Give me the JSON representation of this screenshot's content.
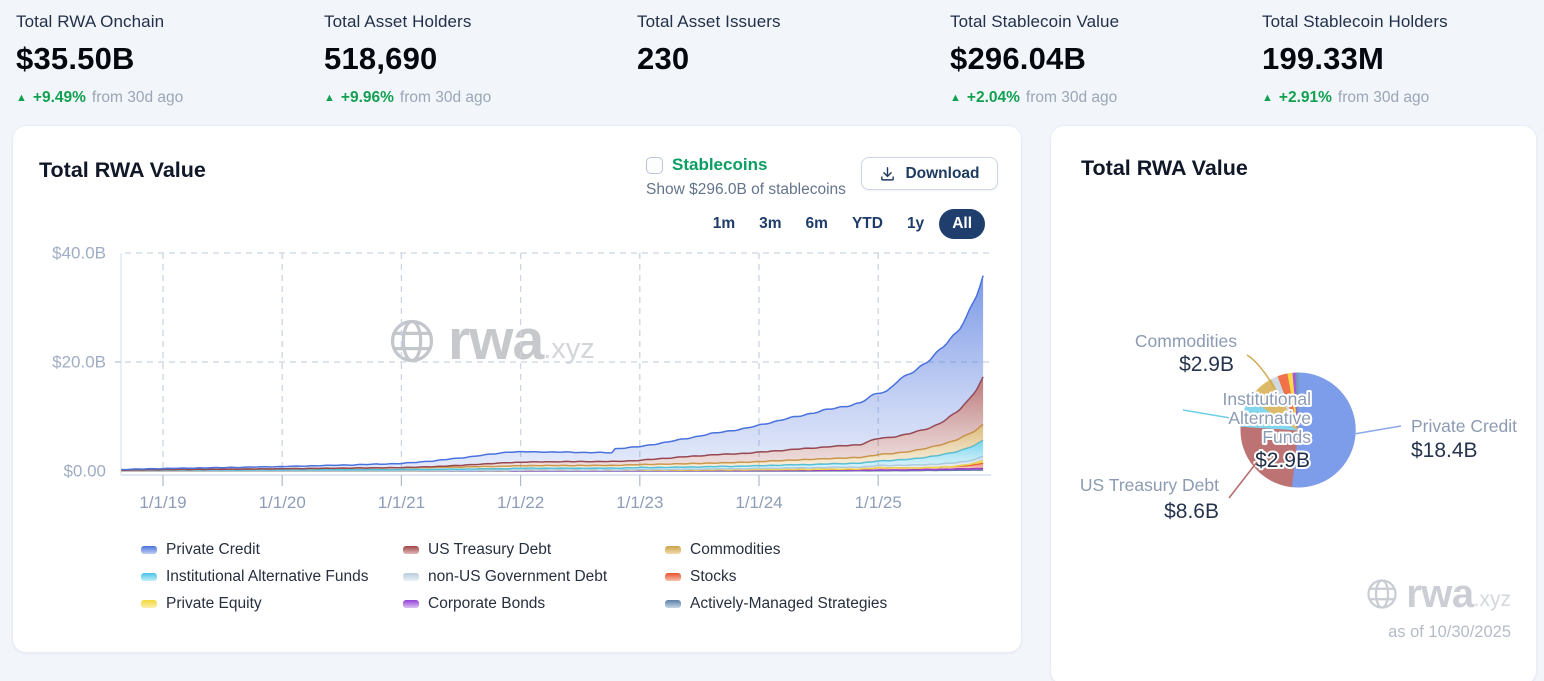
{
  "stats": [
    {
      "label": "Total RWA Onchain",
      "value": "$35.50B",
      "delta": "+9.49%",
      "delta_suffix": "from 30d ago"
    },
    {
      "label": "Total Asset Holders",
      "value": "518,690",
      "delta": "+9.96%",
      "delta_suffix": "from 30d ago"
    },
    {
      "label": "Total Asset Issuers",
      "value": "230",
      "delta": "",
      "delta_suffix": ""
    },
    {
      "label": "Total Stablecoin Value",
      "value": "$296.04B",
      "delta": "+2.04%",
      "delta_suffix": "from 30d ago"
    },
    {
      "label": "Total Stablecoin Holders",
      "value": "199.33M",
      "delta": "+2.91%",
      "delta_suffix": "from 30d ago"
    }
  ],
  "left_card": {
    "title": "Total RWA Value",
    "stablecoins_checkbox_label": "Stablecoins",
    "stablecoins_checkbox_checked": false,
    "stablecoins_subtext": "Show $296.0B of stablecoins",
    "download_label": "Download",
    "time_ranges": [
      "1m",
      "3m",
      "6m",
      "YTD",
      "1y",
      "All"
    ],
    "active_time_range": "All"
  },
  "right_card": {
    "title": "Total RWA Value",
    "as_of": "as of 10/30/2025"
  },
  "watermark": {
    "brand": "rwa",
    "tld": ".xyz"
  },
  "colors": {
    "accent_navy": "#1f3e6d",
    "positive_green": "#12a150",
    "stablecoin_green": "#0b9e63",
    "page_bg": "#f2f6fb",
    "grid": "#ccd5e0",
    "axis_label": "#9aa8c0"
  },
  "chart_data": [
    {
      "type": "area",
      "stacked": true,
      "title": "Total RWA Value",
      "y_ticks": [
        {
          "v": 0,
          "label": "$0.00"
        },
        {
          "v": 20,
          "label": "$20.0B"
        },
        {
          "v": 40,
          "label": "$40.0B"
        }
      ],
      "ylim_b": [
        0,
        40
      ],
      "x_ticks": [
        {
          "t": 2019,
          "label": "1/1/19"
        },
        {
          "t": 2020,
          "label": "1/1/20"
        },
        {
          "t": 2021,
          "label": "1/1/21"
        },
        {
          "t": 2022,
          "label": "1/1/22"
        },
        {
          "t": 2023,
          "label": "1/1/23"
        },
        {
          "t": 2024,
          "label": "1/1/24"
        },
        {
          "t": 2025,
          "label": "1/1/25"
        }
      ],
      "x_years": [
        2018.65,
        2019.0,
        2019.5,
        2020.0,
        2020.5,
        2021.0,
        2021.3,
        2021.6,
        2021.9,
        2022.1,
        2022.35,
        2022.6,
        2022.78,
        2022.79,
        2023.0,
        2023.3,
        2023.6,
        2023.9,
        2024.1,
        2024.35,
        2024.6,
        2024.85,
        2024.95,
        2025.0,
        2025.08,
        2025.17,
        2025.25,
        2025.33,
        2025.42,
        2025.5,
        2025.58,
        2025.67,
        2025.75,
        2025.83,
        2025.88
      ],
      "series": [
        {
          "name": "Actively-Managed Strategies",
          "color": "#5b7fa6",
          "light": "#c3d6e6",
          "values": [
            0,
            0,
            0,
            0,
            0,
            0,
            0,
            0,
            0,
            0,
            0,
            0,
            0,
            0,
            0,
            0,
            0,
            0,
            0,
            0,
            0.02,
            0.03,
            0.04,
            0.05,
            0.05,
            0.06,
            0.07,
            0.08,
            0.09,
            0.1,
            0.12,
            0.14,
            0.16,
            0.18,
            0.2
          ]
        },
        {
          "name": "Corporate Bonds",
          "color": "#9340d9",
          "light": "#ddc2f2",
          "values": [
            0,
            0,
            0,
            0,
            0,
            0,
            0,
            0,
            0.03,
            0.05,
            0.06,
            0.06,
            0.06,
            0.06,
            0.07,
            0.07,
            0.08,
            0.08,
            0.09,
            0.1,
            0.1,
            0.11,
            0.12,
            0.12,
            0.13,
            0.14,
            0.15,
            0.16,
            0.18,
            0.2,
            0.22,
            0.24,
            0.26,
            0.28,
            0.3
          ]
        },
        {
          "name": "Stocks",
          "color": "#e8532f",
          "light": "#f8c0ab",
          "values": [
            0,
            0,
            0,
            0,
            0,
            0,
            0.02,
            0.05,
            0.08,
            0.12,
            0.1,
            0.1,
            0.1,
            0.1,
            0.1,
            0.1,
            0.12,
            0.13,
            0.15,
            0.17,
            0.2,
            0.22,
            0.35,
            0.45,
            0.4,
            0.38,
            0.35,
            0.35,
            0.38,
            0.4,
            0.45,
            0.5,
            0.6,
            0.75,
            1.0
          ]
        },
        {
          "name": "Private Equity",
          "color": "#f2d73a",
          "light": "#fbf0ae",
          "values": [
            0,
            0,
            0,
            0,
            0,
            0,
            0,
            0,
            0,
            0,
            0,
            0,
            0,
            0,
            0,
            0,
            0,
            0,
            0,
            0,
            0,
            0,
            0,
            0,
            0,
            0,
            0,
            0,
            0,
            0,
            0,
            0.05,
            0.15,
            0.35,
            0.5
          ]
        },
        {
          "name": "non-US Government Debt",
          "color": "#b9cbdd",
          "light": "#e9f1f7",
          "values": [
            0,
            0,
            0,
            0,
            0,
            0,
            0,
            0,
            0,
            0,
            0,
            0,
            0,
            0,
            0.08,
            0.12,
            0.17,
            0.22,
            0.26,
            0.3,
            0.33,
            0.36,
            0.38,
            0.4,
            0.42,
            0.45,
            0.47,
            0.5,
            0.52,
            0.55,
            0.58,
            0.6,
            0.63,
            0.67,
            0.7
          ]
        },
        {
          "name": "Institutional Alternative Funds",
          "color": "#47c3e6",
          "light": "#c4eff9",
          "values": [
            0.15,
            0.17,
            0.19,
            0.21,
            0.24,
            0.27,
            0.29,
            0.31,
            0.33,
            0.34,
            0.34,
            0.35,
            0.35,
            0.35,
            0.37,
            0.39,
            0.42,
            0.46,
            0.52,
            0.58,
            0.65,
            0.72,
            0.8,
            0.85,
            0.9,
            1.0,
            1.1,
            1.25,
            1.4,
            1.6,
            1.8,
            2.1,
            2.4,
            2.7,
            2.9
          ]
        },
        {
          "name": "Commodities",
          "color": "#cfa14a",
          "light": "#eedcae",
          "values": [
            0.02,
            0.08,
            0.13,
            0.2,
            0.28,
            0.33,
            0.36,
            0.4,
            0.45,
            0.47,
            0.5,
            0.5,
            0.5,
            0.5,
            0.55,
            0.6,
            0.65,
            0.72,
            0.8,
            0.9,
            0.97,
            1.05,
            1.1,
            1.15,
            1.2,
            1.3,
            1.4,
            1.5,
            1.65,
            1.8,
            2.0,
            2.2,
            2.4,
            2.7,
            2.9
          ]
        },
        {
          "name": "US Treasury Debt",
          "color": "#a04444",
          "light": "#e0b8b8",
          "values": [
            0,
            0,
            0,
            0,
            0,
            0.02,
            0.15,
            0.4,
            0.65,
            0.68,
            0.7,
            0.72,
            0.73,
            0.73,
            0.78,
            1.2,
            1.5,
            1.65,
            1.8,
            2.0,
            2.2,
            2.35,
            2.85,
            2.95,
            3.0,
            3.1,
            3.25,
            3.4,
            3.6,
            3.9,
            4.4,
            5.2,
            6.2,
            7.6,
            8.6
          ]
        },
        {
          "name": "Private Credit",
          "color": "#4a72dc",
          "light": "#bfd0f4",
          "values": [
            0.1,
            0.2,
            0.3,
            0.4,
            0.55,
            0.75,
            1.1,
            1.5,
            1.95,
            1.85,
            1.75,
            1.65,
            1.6,
            2.35,
            2.5,
            3.1,
            3.9,
            4.6,
            5.3,
            6.1,
            6.9,
            7.6,
            8.2,
            8.4,
            8.6,
            10.2,
            10.8,
            11.6,
            12.4,
            13.2,
            14.0,
            14.8,
            15.8,
            17.2,
            18.4
          ]
        }
      ],
      "legend_order": [
        "Private Credit",
        "US Treasury Debt",
        "Commodities",
        "Institutional Alternative Funds",
        "non-US Government Debt",
        "Stocks",
        "Private Equity",
        "Corporate Bonds",
        "Actively-Managed Strategies"
      ]
    },
    {
      "type": "pie",
      "title": "Total RWA Value",
      "total_b": 35.5,
      "slices": [
        {
          "name": "Private Credit",
          "value_b": 18.4,
          "display_value": "$18.4B",
          "labeled": true,
          "color": "#7d9cea"
        },
        {
          "name": "US Treasury Debt",
          "value_b": 8.6,
          "display_value": "$8.6B",
          "labeled": true,
          "color": "#bd7373"
        },
        {
          "name": "Institutional Alternative Funds",
          "value_b": 2.9,
          "display_value": "$2.9B",
          "labeled": true,
          "color": "#82d6ee"
        },
        {
          "name": "Commodities",
          "value_b": 2.9,
          "display_value": "$2.9B",
          "labeled": true,
          "color": "#dcba68"
        },
        {
          "name": "non-US Government Debt",
          "value_b": 0.7,
          "display_value": "",
          "labeled": false,
          "color": "#cfd9e2"
        },
        {
          "name": "Stocks",
          "value_b": 1.0,
          "display_value": "",
          "labeled": false,
          "color": "#f0714a"
        },
        {
          "name": "Private Equity",
          "value_b": 0.5,
          "display_value": "",
          "labeled": false,
          "color": "#f6da4a"
        },
        {
          "name": "Corporate Bonds",
          "value_b": 0.3,
          "display_value": "",
          "labeled": false,
          "color": "#a855dd"
        },
        {
          "name": "Actively-Managed Strategies",
          "value_b": 0.2,
          "display_value": "",
          "labeled": false,
          "color": "#7396ba"
        }
      ]
    }
  ]
}
